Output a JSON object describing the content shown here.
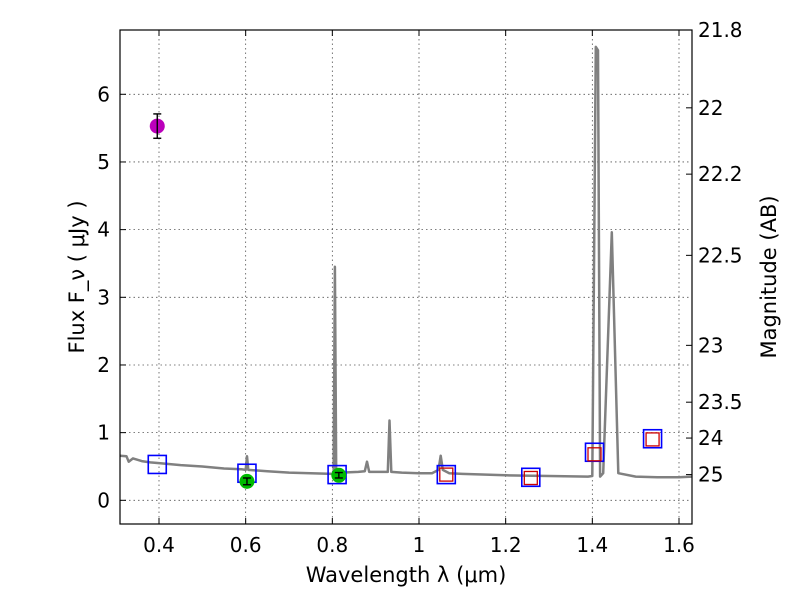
{
  "chart_data": {
    "type": "scatter",
    "xlabel": "Wavelength  λ (μm)",
    "ylabel_left": "Flux  F_ν  ( μJy )",
    "ylabel_right": "Magnitude (AB)",
    "xlim": [
      0.31,
      1.63
    ],
    "ylim": [
      -0.35,
      6.95
    ],
    "x_ticks": [
      0.4,
      0.6,
      0.8,
      1.0,
      1.2,
      1.4,
      1.6
    ],
    "x_tick_labels": [
      "0.4",
      "0.6",
      "0.8",
      "1",
      "1.2",
      "1.4",
      "1.6"
    ],
    "y_ticks": [
      0,
      1,
      2,
      3,
      4,
      5,
      6
    ],
    "y_tick_labels": [
      "0",
      "1",
      "2",
      "3",
      "4",
      "5",
      "6"
    ],
    "right_ticks": [
      {
        "flux": 6.95,
        "label": "21.8"
      },
      {
        "flux": 5.8,
        "label": "22"
      },
      {
        "flux": 4.82,
        "label": "22.2"
      },
      {
        "flux": 3.62,
        "label": "22.5"
      },
      {
        "flux": 2.29,
        "label": "23"
      },
      {
        "flux": 1.45,
        "label": "23.5"
      },
      {
        "flux": 0.92,
        "label": "24"
      },
      {
        "flux": 0.38,
        "label": "25"
      }
    ],
    "grid": true,
    "colors": {
      "model": "#808080",
      "model_photometry": "#0000ff",
      "observed_photometry": "#cc0000",
      "point_magenta": "#bb00bb",
      "point_green": "#00bb00",
      "axis": "#000000"
    },
    "model_spectrum": [
      [
        0.31,
        0.66
      ],
      [
        0.325,
        0.65
      ],
      [
        0.33,
        0.57
      ],
      [
        0.34,
        0.62
      ],
      [
        0.36,
        0.58
      ],
      [
        0.38,
        0.56
      ],
      [
        0.4,
        0.55
      ],
      [
        0.45,
        0.52
      ],
      [
        0.5,
        0.5
      ],
      [
        0.55,
        0.47
      ],
      [
        0.59,
        0.46
      ],
      [
        0.6,
        0.45
      ],
      [
        0.603,
        0.65
      ],
      [
        0.606,
        0.45
      ],
      [
        0.65,
        0.43
      ],
      [
        0.7,
        0.41
      ],
      [
        0.75,
        0.4
      ],
      [
        0.8,
        0.39
      ],
      [
        0.803,
        0.39
      ],
      [
        0.806,
        3.45
      ],
      [
        0.809,
        0.4
      ],
      [
        0.82,
        0.41
      ],
      [
        0.86,
        0.42
      ],
      [
        0.875,
        0.43
      ],
      [
        0.88,
        0.57
      ],
      [
        0.885,
        0.42
      ],
      [
        0.92,
        0.42
      ],
      [
        0.928,
        0.42
      ],
      [
        0.932,
        1.18
      ],
      [
        0.936,
        0.42
      ],
      [
        0.96,
        0.41
      ],
      [
        1.0,
        0.4
      ],
      [
        1.03,
        0.4
      ],
      [
        1.045,
        0.45
      ],
      [
        1.05,
        0.66
      ],
      [
        1.055,
        0.45
      ],
      [
        1.07,
        0.4
      ],
      [
        1.1,
        0.39
      ],
      [
        1.2,
        0.37
      ],
      [
        1.3,
        0.36
      ],
      [
        1.39,
        0.35
      ],
      [
        1.4,
        0.36
      ],
      [
        1.408,
        6.7
      ],
      [
        1.413,
        6.65
      ],
      [
        1.418,
        0.35
      ],
      [
        1.425,
        0.4
      ],
      [
        1.445,
        3.96
      ],
      [
        1.46,
        0.4
      ],
      [
        1.5,
        0.35
      ],
      [
        1.55,
        0.34
      ],
      [
        1.6,
        0.34
      ],
      [
        1.63,
        0.35
      ]
    ],
    "model_photometry": [
      {
        "x": 0.396,
        "y": 0.53
      },
      {
        "x": 0.603,
        "y": 0.4
      },
      {
        "x": 0.811,
        "y": 0.38
      },
      {
        "x": 1.063,
        "y": 0.38
      },
      {
        "x": 1.258,
        "y": 0.34
      },
      {
        "x": 1.405,
        "y": 0.71
      },
      {
        "x": 1.539,
        "y": 0.91
      }
    ],
    "observed_photometry": [
      {
        "x": 1.063,
        "y": 0.38
      },
      {
        "x": 1.258,
        "y": 0.33
      },
      {
        "x": 1.405,
        "y": 0.68
      },
      {
        "x": 1.539,
        "y": 0.9
      }
    ],
    "observed_points": [
      {
        "name": "magenta",
        "x": 0.396,
        "y": 5.53,
        "yerr": 0.18
      },
      {
        "name": "green",
        "x": 0.603,
        "y": 0.28,
        "yerr": 0.05
      },
      {
        "name": "green",
        "x": 0.815,
        "y": 0.37,
        "yerr": 0.04
      }
    ]
  }
}
